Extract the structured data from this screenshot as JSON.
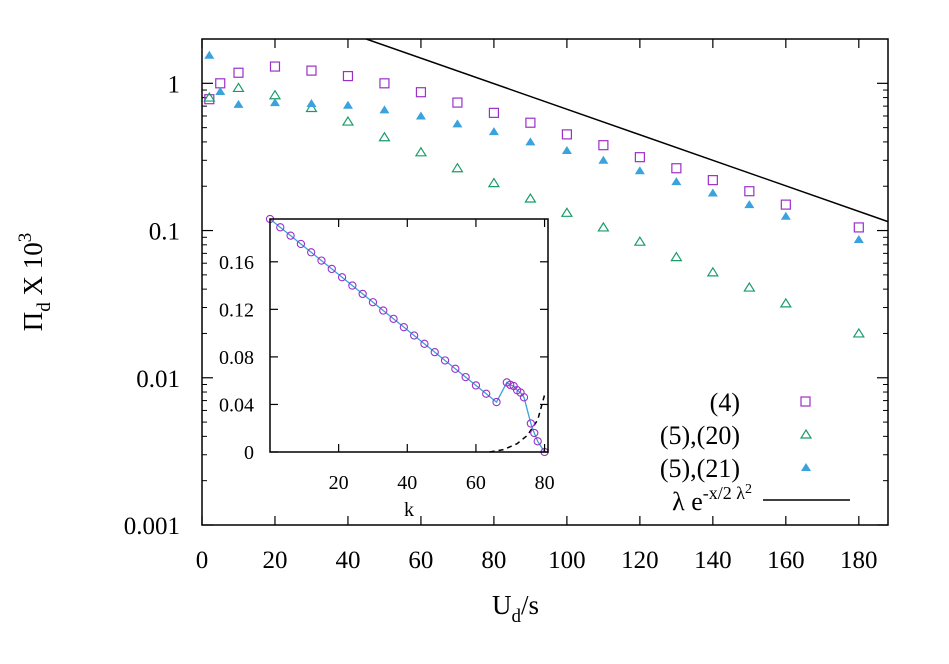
{
  "chart_data": [
    {
      "type": "scatter",
      "yscale": "log",
      "xlim": [
        0,
        188
      ],
      "ylim": [
        0.001,
        2
      ],
      "xticks": [
        0,
        20,
        40,
        60,
        80,
        100,
        120,
        140,
        160,
        180
      ],
      "xtick_labels": [
        "0",
        "20",
        "40",
        "60",
        "80",
        "100",
        "120",
        "140",
        "160",
        "180"
      ],
      "yticks": [
        0.001,
        0.01,
        0.1,
        1
      ],
      "ytick_labels": [
        "0.001",
        "0.01",
        "0.1",
        "1"
      ],
      "xlabel": "U_d/s",
      "ylabel": "Π_d X 10^3",
      "legend_position": "bottom-right",
      "series": [
        {
          "name": "(4)",
          "marker": "open-square",
          "color": "#9b30c8",
          "x": [
            2,
            5,
            10,
            20,
            30,
            40,
            50,
            60,
            70,
            80,
            90,
            100,
            110,
            120,
            130,
            140,
            150,
            160,
            180
          ],
          "y": [
            0.78,
            1.0,
            1.18,
            1.3,
            1.22,
            1.12,
            1.0,
            0.87,
            0.74,
            0.63,
            0.54,
            0.45,
            0.38,
            0.315,
            0.265,
            0.22,
            0.185,
            0.15,
            0.105
          ]
        },
        {
          "name": "(5),(20)",
          "marker": "open-triangle",
          "color": "#1a9c6a",
          "x": [
            2,
            10,
            20,
            30,
            40,
            50,
            60,
            70,
            80,
            90,
            100,
            110,
            120,
            130,
            140,
            150,
            160,
            180
          ],
          "y": [
            0.8,
            0.93,
            0.83,
            0.68,
            0.55,
            0.43,
            0.34,
            0.265,
            0.21,
            0.165,
            0.132,
            0.105,
            0.084,
            0.066,
            0.052,
            0.041,
            0.032,
            0.02
          ]
        },
        {
          "name": "(5),(21)",
          "marker": "filled-triangle",
          "color": "#3aa2dc",
          "x": [
            2,
            5,
            10,
            20,
            30,
            40,
            50,
            60,
            70,
            80,
            90,
            100,
            110,
            120,
            130,
            140,
            150,
            160,
            180
          ],
          "y": [
            1.55,
            0.88,
            0.72,
            0.74,
            0.73,
            0.71,
            0.66,
            0.6,
            0.53,
            0.47,
            0.4,
            0.35,
            0.3,
            0.255,
            0.215,
            0.18,
            0.15,
            0.125,
            0.087
          ]
        },
        {
          "name": "λ e^{-x/2 λ^2}",
          "marker": "line",
          "color": "#000000",
          "x": [
            45,
            188
          ],
          "y": [
            2.0,
            0.115
          ]
        }
      ]
    },
    {
      "type": "line",
      "inset": true,
      "xlim": [
        0,
        81
      ],
      "ylim": [
        0,
        0.196
      ],
      "xticks": [
        20,
        40,
        60,
        80
      ],
      "xtick_labels": [
        "20",
        "40",
        "60",
        "80"
      ],
      "yticks": [
        0,
        0.04,
        0.08,
        0.12,
        0.16
      ],
      "ytick_labels": [
        "0",
        "0.04",
        "0.08",
        "0.12",
        "0.16"
      ],
      "xlabel": "k",
      "ylabel": "",
      "series": [
        {
          "name": "",
          "marker": "open-circle",
          "color": "#9b30c8",
          "line_color": "#3aa2dc",
          "x": [
            0,
            3,
            6,
            9,
            12,
            15,
            18,
            21,
            24,
            27,
            30,
            33,
            36,
            39,
            42,
            45,
            48,
            51,
            54,
            57,
            60,
            63,
            66,
            69,
            70,
            71,
            72,
            73,
            74,
            76,
            77,
            78,
            80
          ],
          "y": [
            0.196,
            0.189,
            0.182,
            0.175,
            0.168,
            0.161,
            0.154,
            0.147,
            0.14,
            0.133,
            0.126,
            0.119,
            0.112,
            0.105,
            0.098,
            0.091,
            0.084,
            0.077,
            0.07,
            0.063,
            0.056,
            0.049,
            0.042,
            0.0585,
            0.0565,
            0.0555,
            0.052,
            0.05,
            0.046,
            0.024,
            0.016,
            0.009,
            0.0
          ]
        },
        {
          "name": "",
          "marker": "dashed-line",
          "color": "#000000",
          "x": [
            64,
            68,
            72,
            75,
            78,
            80
          ],
          "y": [
            0.0,
            0.002,
            0.007,
            0.014,
            0.027,
            0.048
          ]
        }
      ]
    }
  ]
}
